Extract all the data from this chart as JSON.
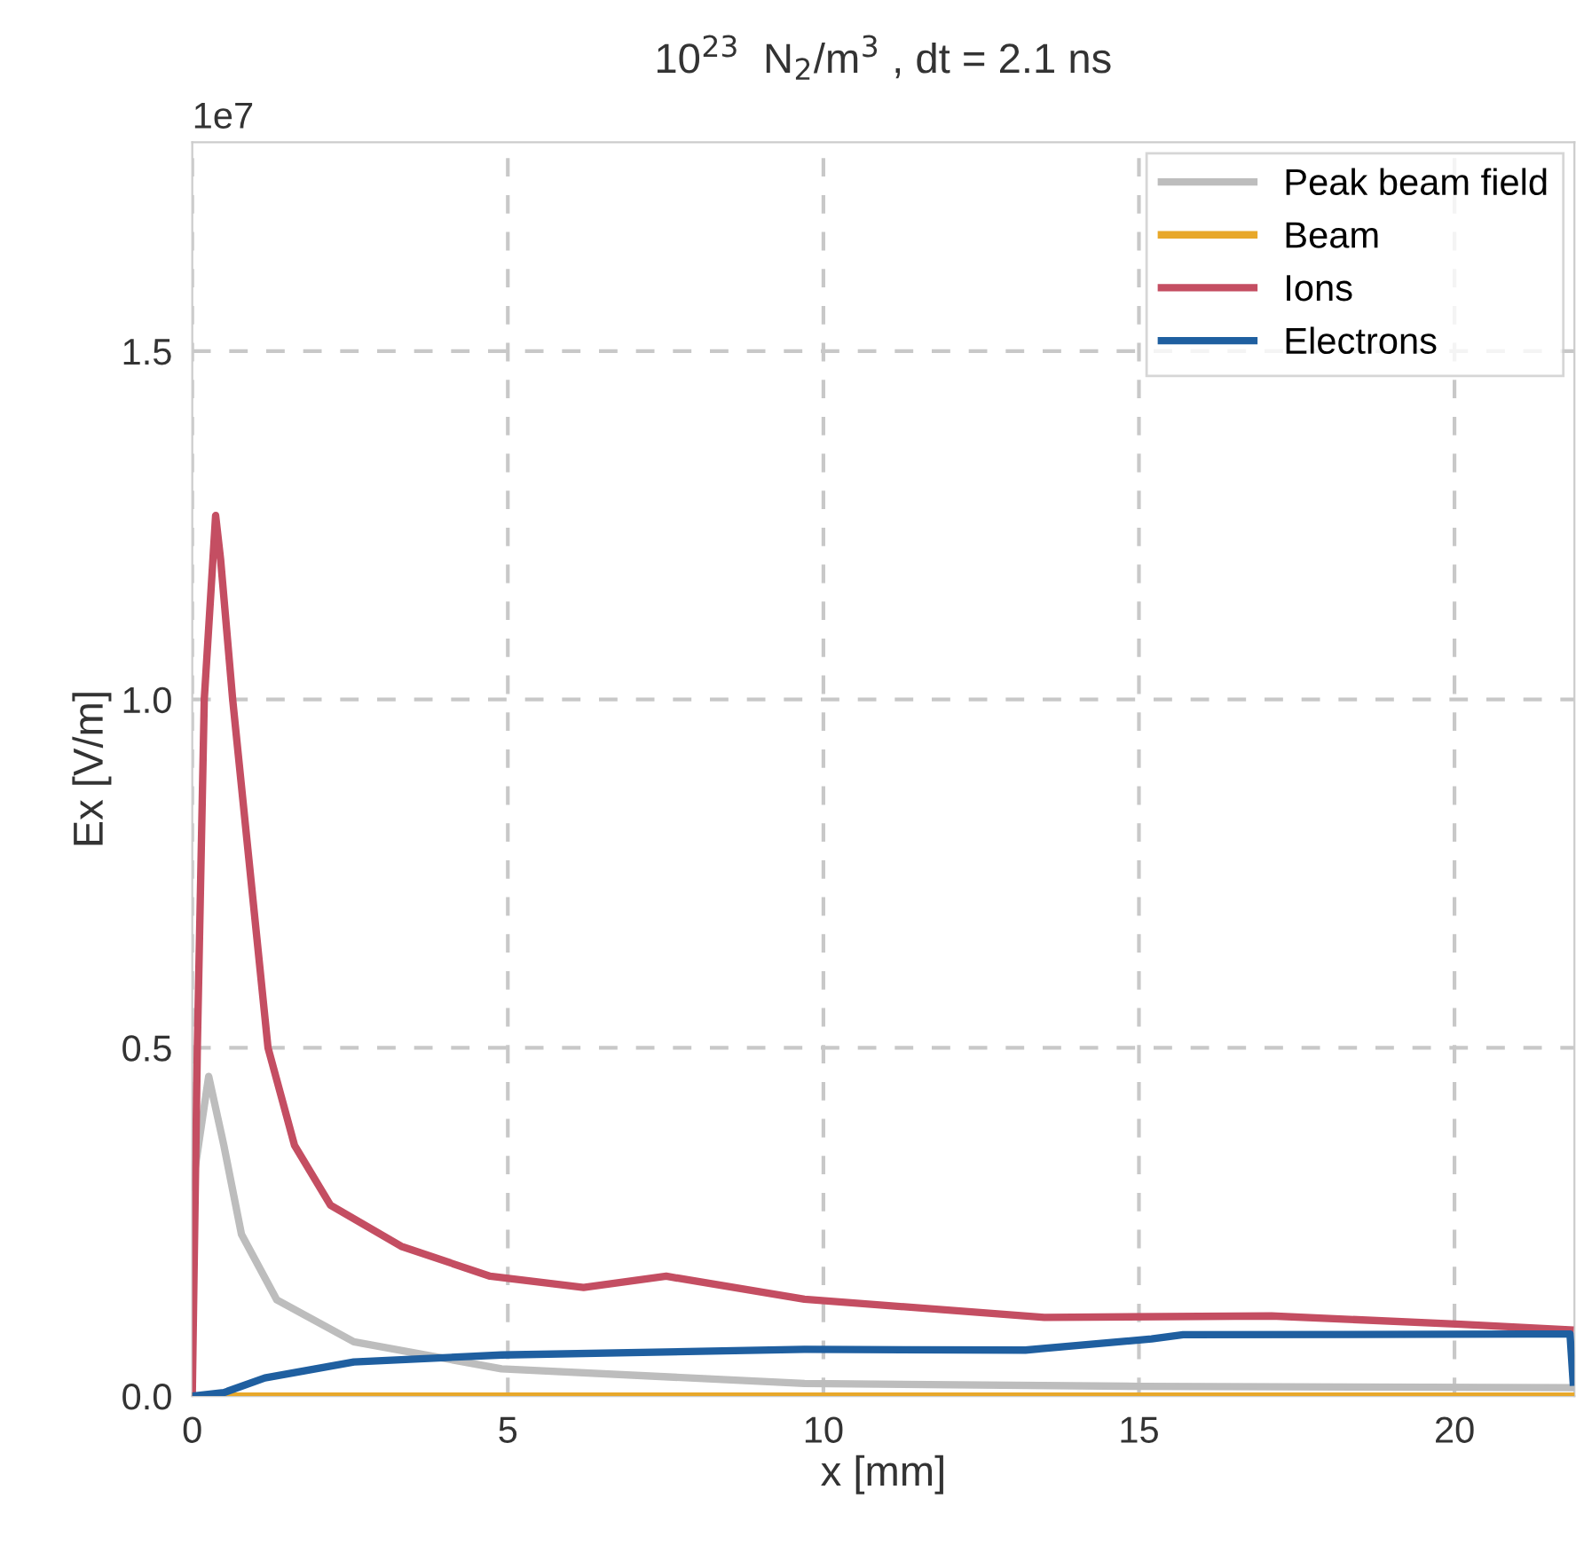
{
  "chart_data": {
    "type": "line",
    "title": "10$^{23}$  N$_{2}$/m$^{3}$ , dt = 2.1 ns",
    "xlabel": "x [mm]",
    "ylabel": "Ex [V/m]",
    "annotations": [
      "1e7"
    ],
    "xlim": [
      0,
      21.9
    ],
    "ylim": [
      0,
      1.8
    ],
    "xticks": [
      0,
      5,
      10,
      15,
      20
    ],
    "yticks": [
      {
        "value": 0,
        "label": "0.0"
      },
      0.5,
      {
        "value": 1,
        "label": "1.0"
      },
      1.5
    ],
    "grid": true,
    "legend": "top right",
    "line_style": "solid",
    "marker": "none",
    "series": [
      {
        "name": "Peak beam field",
        "color": "#bdbdbd",
        "x": [
          0,
          0.26,
          0.5,
          0.78,
          1.34,
          2.56,
          4.9,
          9.7,
          15,
          21.9
        ],
        "values": [
          0.3,
          0.459,
          0.36,
          0.232,
          0.138,
          0.078,
          0.039,
          0.018,
          0.014,
          0.012
        ]
      },
      {
        "name": "Beam",
        "color": "#e8a82a",
        "x": [
          0,
          21.9
        ],
        "values": [
          0,
          0
        ]
      },
      {
        "name": "Ions",
        "color": "#c44e62",
        "x": [
          0,
          0.08,
          0.19,
          0.37,
          0.45,
          0.64,
          1.2,
          1.62,
          2.19,
          3.31,
          4.72,
          6.2,
          7.51,
          9.7,
          13.5,
          17.1,
          20.1,
          21.83
        ],
        "values": [
          0,
          0.5,
          1.0,
          1.264,
          1.2,
          1.0,
          0.5,
          0.36,
          0.274,
          0.215,
          0.172,
          0.156,
          0.172,
          0.139,
          0.113,
          0.115,
          0.103,
          0.095
        ]
      },
      {
        "name": "Electrons",
        "color": "#1f5fa0",
        "x": [
          0,
          0.5,
          1.15,
          2.56,
          4.9,
          9.7,
          13.2,
          15.2,
          15.7,
          21.15,
          21.83,
          21.88
        ],
        "values": [
          0,
          0.005,
          0.026,
          0.049,
          0.059,
          0.067,
          0.066,
          0.082,
          0.088,
          0.089,
          0.089,
          0.02
        ]
      }
    ]
  }
}
